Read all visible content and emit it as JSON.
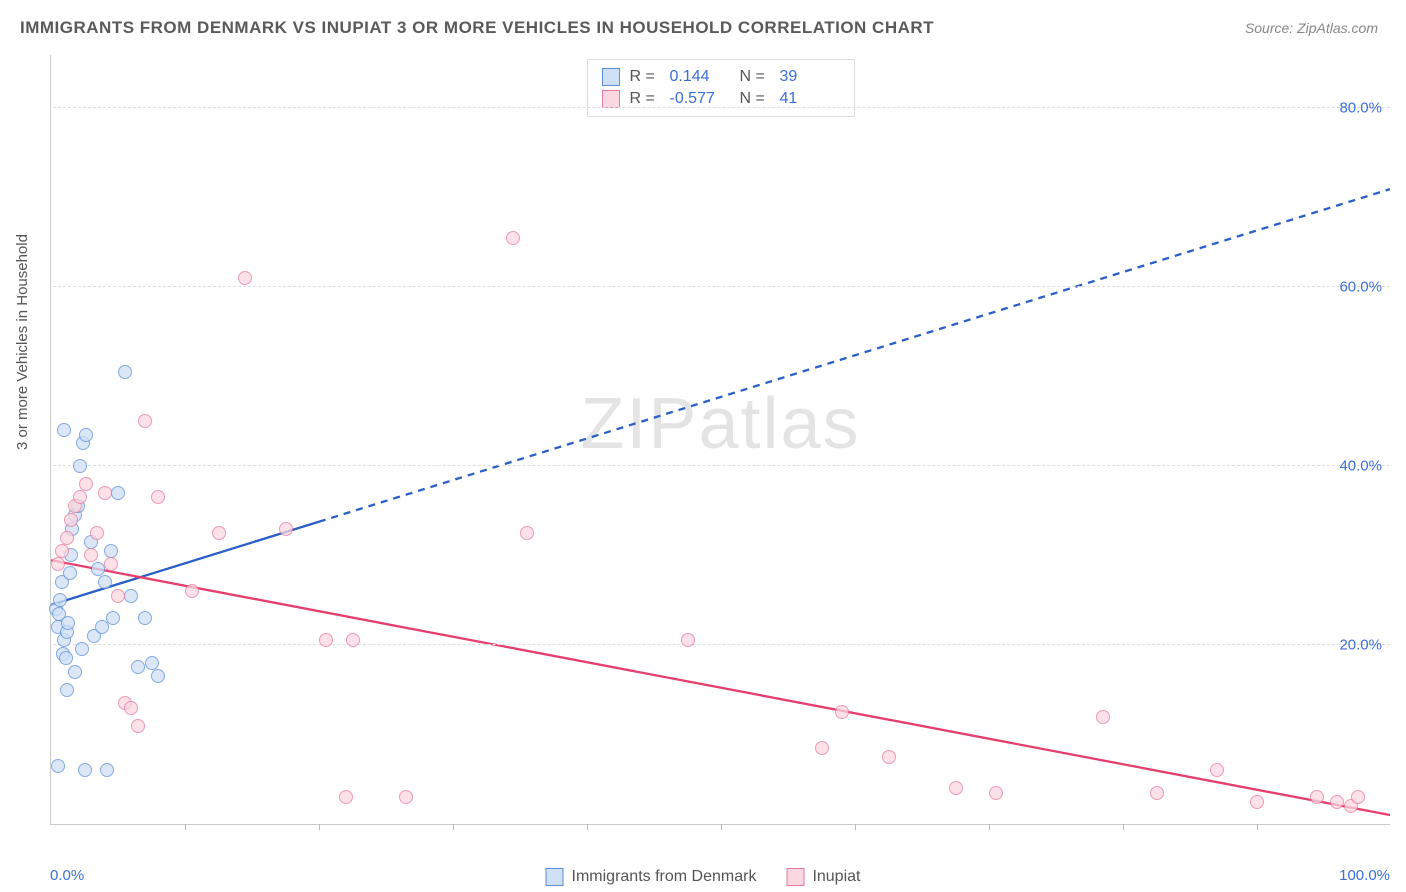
{
  "title": "IMMIGRANTS FROM DENMARK VS INUPIAT 3 OR MORE VEHICLES IN HOUSEHOLD CORRELATION CHART",
  "source": "Source: ZipAtlas.com",
  "ylabel": "3 or more Vehicles in Household",
  "watermark_a": "ZIP",
  "watermark_b": "atlas",
  "chart": {
    "type": "scatter",
    "xlim": [
      0,
      100
    ],
    "ylim": [
      0,
      86
    ],
    "x_min_label": "0.0%",
    "x_max_label": "100.0%",
    "y_ticks": [
      20,
      40,
      60,
      80
    ],
    "y_tick_labels": [
      "20.0%",
      "40.0%",
      "60.0%",
      "80.0%"
    ],
    "x_minor_ticks": [
      10,
      20,
      30,
      40,
      50,
      60,
      70,
      80,
      90
    ],
    "grid_color": "#dddddd",
    "axis_color": "#cccccc",
    "background_color": "#ffffff",
    "tick_label_color": "#3b6fd8",
    "marker_radius": 7,
    "marker_stroke_width": 1.2,
    "series": [
      {
        "name": "Immigrants from Denmark",
        "fill": "#cfe0f5",
        "stroke": "#5b8fd8",
        "fill_opacity": 0.75,
        "r_label": "R =",
        "r_value": "0.144",
        "n_label": "N =",
        "n_value": "39",
        "trend": {
          "x1": 0,
          "y1": 24.5,
          "x2": 100,
          "y2": 71,
          "solid_until_x": 20,
          "color": "#2b5fc8",
          "width": 2.3
        },
        "points": [
          [
            0.4,
            24
          ],
          [
            0.5,
            22
          ],
          [
            0.6,
            23.5
          ],
          [
            0.7,
            25
          ],
          [
            0.8,
            27
          ],
          [
            0.9,
            19
          ],
          [
            1.0,
            20.5
          ],
          [
            1.1,
            18.5
          ],
          [
            1.2,
            21.5
          ],
          [
            1.3,
            22.5
          ],
          [
            1.4,
            28
          ],
          [
            1.5,
            30
          ],
          [
            1.6,
            33
          ],
          [
            1.8,
            34.5
          ],
          [
            2.0,
            35.5
          ],
          [
            2.2,
            40
          ],
          [
            2.4,
            42.5
          ],
          [
            2.6,
            43.5
          ],
          [
            1.0,
            44
          ],
          [
            3.0,
            31.5
          ],
          [
            3.5,
            28.5
          ],
          [
            4.0,
            27
          ],
          [
            4.5,
            30.5
          ],
          [
            5.0,
            37
          ],
          [
            5.5,
            50.5
          ],
          [
            6.0,
            25.5
          ],
          [
            6.5,
            17.5
          ],
          [
            7.0,
            23
          ],
          [
            7.5,
            18
          ],
          [
            8.0,
            16.5
          ],
          [
            2.5,
            6
          ],
          [
            4.2,
            6
          ],
          [
            0.5,
            6.5
          ],
          [
            1.2,
            15
          ],
          [
            1.8,
            17
          ],
          [
            2.3,
            19.5
          ],
          [
            3.2,
            21
          ],
          [
            3.8,
            22
          ],
          [
            4.6,
            23
          ]
        ]
      },
      {
        "name": "Inupiat",
        "fill": "#fbd7e1",
        "stroke": "#e67a9a",
        "fill_opacity": 0.75,
        "r_label": "R =",
        "r_value": "-0.577",
        "n_label": "N =",
        "n_value": "41",
        "trend": {
          "x1": 0,
          "y1": 29.5,
          "x2": 100,
          "y2": 1,
          "solid_until_x": 100,
          "color": "#e63e6d",
          "width": 2.3
        },
        "points": [
          [
            0.5,
            29
          ],
          [
            0.8,
            30.5
          ],
          [
            1.2,
            32
          ],
          [
            1.5,
            34
          ],
          [
            1.8,
            35.5
          ],
          [
            2.2,
            36.5
          ],
          [
            2.6,
            38
          ],
          [
            3.0,
            30
          ],
          [
            3.4,
            32.5
          ],
          [
            4.0,
            37
          ],
          [
            4.5,
            29
          ],
          [
            5.0,
            25.5
          ],
          [
            5.5,
            13.5
          ],
          [
            6.0,
            13
          ],
          [
            6.5,
            11
          ],
          [
            7.0,
            45
          ],
          [
            8.0,
            36.5
          ],
          [
            10.5,
            26
          ],
          [
            12.5,
            32.5
          ],
          [
            14.5,
            61
          ],
          [
            17.5,
            33
          ],
          [
            20.5,
            20.5
          ],
          [
            22.5,
            20.5
          ],
          [
            22.0,
            3
          ],
          [
            26.5,
            3
          ],
          [
            34.5,
            65.5
          ],
          [
            35.5,
            32.5
          ],
          [
            47.5,
            20.5
          ],
          [
            57.5,
            8.5
          ],
          [
            59.0,
            12.5
          ],
          [
            62.5,
            7.5
          ],
          [
            67.5,
            4
          ],
          [
            70.5,
            3.5
          ],
          [
            78.5,
            12
          ],
          [
            82.5,
            3.5
          ],
          [
            87.0,
            6
          ],
          [
            90.0,
            2.5
          ],
          [
            94.5,
            3
          ],
          [
            96.0,
            2.5
          ],
          [
            97.0,
            2
          ],
          [
            97.5,
            3
          ]
        ]
      }
    ]
  }
}
